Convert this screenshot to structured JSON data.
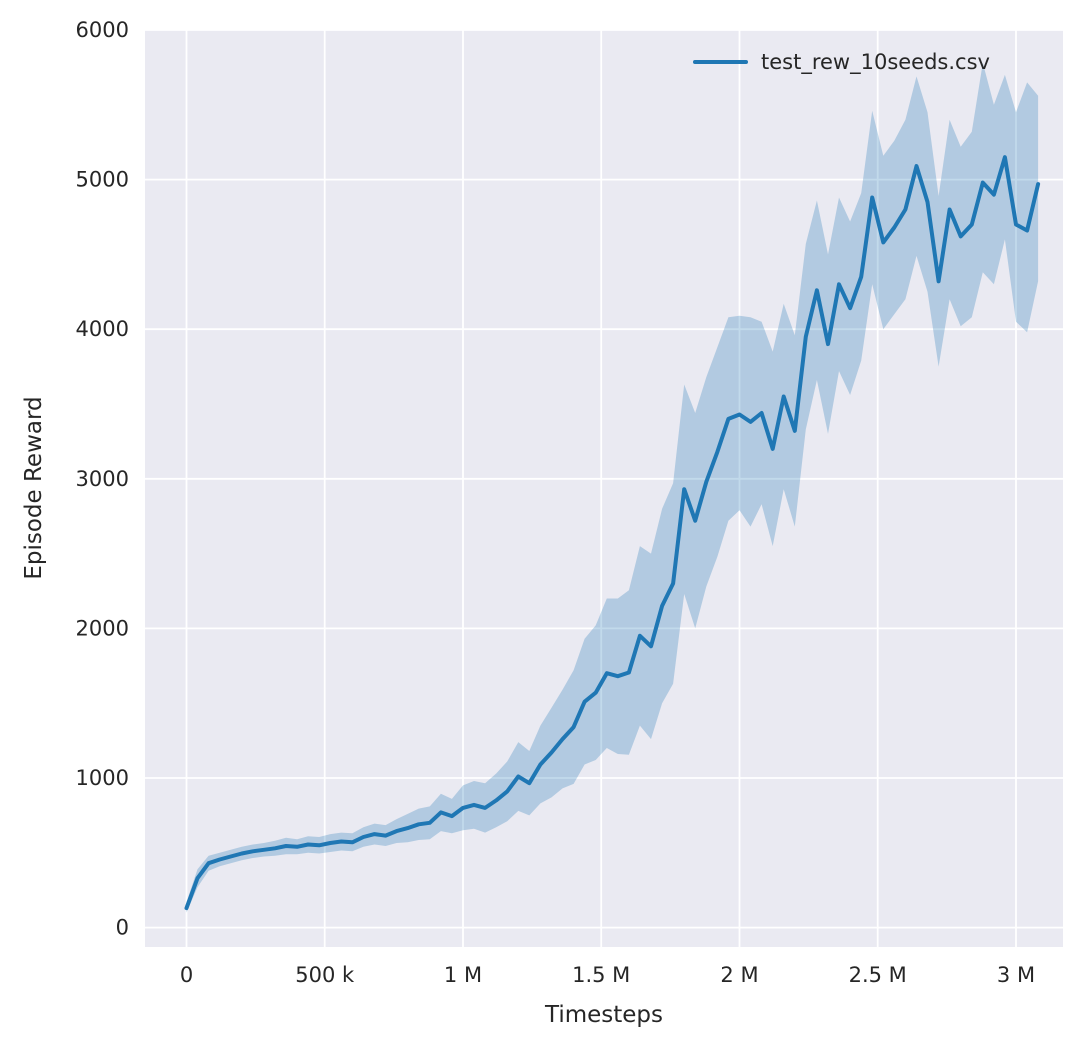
{
  "figure": {
    "background": "#ffffff",
    "axes_background": "#eaeaf2",
    "grid_color": "#ffffff",
    "text_color": "#262626"
  },
  "chart_data": {
    "type": "line",
    "title": "",
    "xlabel": "Timesteps",
    "ylabel": "Episode Reward",
    "grid": true,
    "legend_position": "upper right",
    "legend": [
      {
        "label": "test_rew_10seeds.csv",
        "color": "#1f77b4"
      }
    ],
    "xlim": [
      -150000,
      3170000
    ],
    "ylim": [
      -130,
      6000
    ],
    "x_ticks": [
      0,
      500000,
      1000000,
      1500000,
      2000000,
      2500000,
      3000000
    ],
    "x_tick_labels": [
      "0",
      "500 k",
      "1 M",
      "1.5 M",
      "2 M",
      "2.5 M",
      "3 M"
    ],
    "y_ticks": [
      0,
      1000,
      2000,
      3000,
      4000,
      5000,
      6000
    ],
    "y_tick_labels": [
      "0",
      "1000",
      "2000",
      "3000",
      "4000",
      "5000",
      "6000"
    ],
    "series": [
      {
        "name": "test_rew_10seeds.csv",
        "color": "#1f77b4",
        "band_opacity": 0.27,
        "x": [
          0,
          40000,
          80000,
          120000,
          160000,
          200000,
          240000,
          280000,
          320000,
          360000,
          400000,
          440000,
          480000,
          520000,
          560000,
          600000,
          640000,
          680000,
          720000,
          760000,
          800000,
          840000,
          880000,
          920000,
          960000,
          1000000,
          1040000,
          1080000,
          1120000,
          1160000,
          1200000,
          1240000,
          1280000,
          1320000,
          1360000,
          1400000,
          1440000,
          1480000,
          1520000,
          1560000,
          1600000,
          1640000,
          1680000,
          1720000,
          1760000,
          1800000,
          1840000,
          1880000,
          1920000,
          1960000,
          2000000,
          2040000,
          2080000,
          2120000,
          2160000,
          2200000,
          2240000,
          2280000,
          2320000,
          2360000,
          2400000,
          2440000,
          2480000,
          2520000,
          2560000,
          2600000,
          2640000,
          2680000,
          2720000,
          2760000,
          2800000,
          2840000,
          2880000,
          2920000,
          2960000,
          3000000,
          3040000,
          3080000
        ],
        "mean": [
          130,
          330,
          430,
          455,
          475,
          495,
          510,
          520,
          530,
          545,
          540,
          555,
          550,
          565,
          575,
          570,
          605,
          625,
          615,
          645,
          665,
          690,
          700,
          770,
          745,
          800,
          820,
          800,
          850,
          910,
          1010,
          965,
          1090,
          1170,
          1260,
          1340,
          1510,
          1570,
          1700,
          1680,
          1705,
          1950,
          1880,
          2150,
          2300,
          2930,
          2720,
          2980,
          3180,
          3400,
          3430,
          3380,
          3440,
          3200,
          3550,
          3320,
          3950,
          4260,
          3900,
          4300,
          4140,
          4350,
          4880,
          4580,
          4680,
          4800,
          5090,
          4850,
          4320,
          4800,
          4620,
          4700,
          4980,
          4900,
          5150,
          4700,
          4660,
          4970
        ],
        "lower": [
          100,
          270,
          380,
          410,
          430,
          450,
          465,
          475,
          480,
          490,
          490,
          500,
          495,
          505,
          515,
          510,
          540,
          555,
          545,
          565,
          570,
          585,
          590,
          645,
          630,
          650,
          660,
          635,
          670,
          710,
          780,
          750,
          830,
          870,
          930,
          960,
          1090,
          1120,
          1200,
          1160,
          1155,
          1350,
          1260,
          1500,
          1630,
          2230,
          2000,
          2280,
          2480,
          2720,
          2790,
          2680,
          2830,
          2550,
          2930,
          2680,
          3330,
          3660,
          3300,
          3720,
          3560,
          3790,
          4300,
          4000,
          4100,
          4200,
          4490,
          4250,
          3750,
          4200,
          4020,
          4080,
          4380,
          4300,
          4600,
          4050,
          3980,
          4320
        ],
        "upper": [
          170,
          390,
          480,
          500,
          520,
          540,
          555,
          565,
          580,
          600,
          590,
          610,
          605,
          625,
          635,
          630,
          670,
          695,
          685,
          725,
          760,
          795,
          810,
          895,
          860,
          950,
          980,
          965,
          1030,
          1110,
          1240,
          1180,
          1350,
          1470,
          1590,
          1720,
          1930,
          2020,
          2200,
          2200,
          2255,
          2550,
          2500,
          2800,
          2970,
          3630,
          3440,
          3680,
          3880,
          4080,
          4090,
          4080,
          4050,
          3850,
          4170,
          3960,
          4570,
          4860,
          4500,
          4880,
          4720,
          4910,
          5460,
          5160,
          5260,
          5400,
          5690,
          5450,
          4890,
          5400,
          5220,
          5320,
          5780,
          5500,
          5700,
          5450,
          5650,
          5560
        ]
      }
    ]
  }
}
